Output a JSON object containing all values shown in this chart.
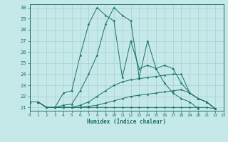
{
  "xlabel": "Humidex (Indice chaleur)",
  "background_color": "#c5e8e8",
  "grid_color": "#a8d0d0",
  "line_color": "#1a7068",
  "xlim": [
    0,
    23
  ],
  "ylim": [
    20.7,
    30.3
  ],
  "xtick_vals": [
    0,
    1,
    2,
    3,
    4,
    5,
    6,
    7,
    8,
    9,
    10,
    11,
    12,
    13,
    14,
    15,
    16,
    17,
    18,
    19,
    20,
    21,
    22,
    23
  ],
  "ytick_vals": [
    21,
    22,
    23,
    24,
    25,
    26,
    27,
    28,
    29,
    30
  ],
  "series": [
    {
      "x": [
        0,
        1,
        2,
        3,
        4,
        5,
        6,
        7,
        8,
        9,
        10,
        11,
        12,
        13,
        14,
        15,
        16,
        17,
        18,
        19,
        20,
        21,
        22
      ],
      "y": [
        21.5,
        21.5,
        21.0,
        21.0,
        22.3,
        22.5,
        25.7,
        28.5,
        30.0,
        29.3,
        28.8,
        23.7,
        27.0,
        24.5,
        24.8,
        24.5,
        23.2,
        22.3,
        21.8,
        21.5,
        20.9,
        null,
        null
      ]
    },
    {
      "x": [
        0,
        1,
        2,
        3,
        4,
        5,
        6,
        7,
        8,
        9,
        10,
        11,
        12,
        13,
        14,
        15,
        16,
        17,
        18,
        19,
        20,
        21,
        22
      ],
      "y": [
        21.5,
        21.5,
        21.0,
        21.0,
        21.2,
        21.3,
        22.5,
        24.0,
        25.7,
        28.5,
        30.0,
        29.3,
        28.8,
        23.7,
        27.0,
        24.5,
        24.8,
        24.5,
        23.2,
        22.3,
        21.8,
        21.5,
        20.9
      ]
    },
    {
      "x": [
        0,
        1,
        2,
        3,
        4,
        5,
        6,
        7,
        8,
        9,
        10,
        11,
        12,
        13,
        14,
        15,
        16,
        17,
        18,
        19,
        20,
        21,
        22
      ],
      "y": [
        21.5,
        21.5,
        21.0,
        21.0,
        21.0,
        21.0,
        21.2,
        21.5,
        22.0,
        22.5,
        23.0,
        23.3,
        23.5,
        23.6,
        23.7,
        23.8,
        23.9,
        24.0,
        24.0,
        22.3,
        21.8,
        21.5,
        20.9
      ]
    },
    {
      "x": [
        0,
        1,
        2,
        3,
        4,
        5,
        6,
        7,
        8,
        9,
        10,
        11,
        12,
        13,
        14,
        15,
        16,
        17,
        18,
        19,
        20,
        21,
        22
      ],
      "y": [
        21.5,
        21.5,
        21.0,
        21.0,
        21.0,
        21.0,
        21.0,
        21.1,
        21.2,
        21.4,
        21.6,
        21.8,
        22.0,
        22.1,
        22.2,
        22.3,
        22.4,
        22.5,
        22.6,
        22.3,
        21.8,
        21.5,
        20.9
      ]
    },
    {
      "x": [
        0,
        1,
        2,
        3,
        4,
        5,
        6,
        7,
        8,
        9,
        10,
        11,
        12,
        13,
        14,
        15,
        16,
        17,
        18,
        19,
        20,
        21,
        22
      ],
      "y": [
        21.5,
        21.5,
        21.0,
        21.0,
        21.0,
        21.0,
        21.0,
        21.0,
        21.0,
        21.0,
        21.0,
        21.0,
        21.0,
        21.0,
        21.0,
        21.0,
        21.0,
        21.0,
        21.0,
        21.0,
        21.0,
        21.0,
        20.9
      ]
    }
  ]
}
